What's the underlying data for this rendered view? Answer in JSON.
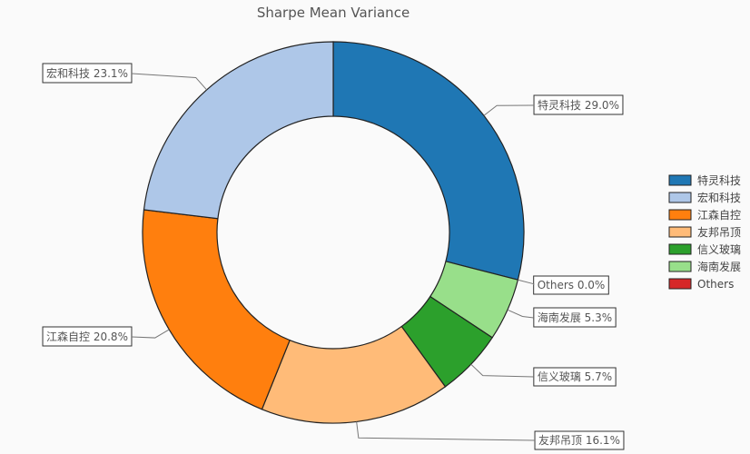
{
  "chart_data": {
    "type": "pie",
    "title": "Sharpe Mean Variance",
    "legend_position": "right",
    "slices": [
      {
        "name": "特灵科技",
        "value": 29.0,
        "label": "特灵科技 29.0%",
        "color": "#1f77b4"
      },
      {
        "name": "Others",
        "value": 0.0,
        "label": "Others 0.0%",
        "color": "#d62728"
      },
      {
        "name": "海南发展",
        "value": 5.3,
        "label": "海南发展 5.3%",
        "color": "#98df8a"
      },
      {
        "name": "信义玻璃",
        "value": 5.7,
        "label": "信义玻璃 5.7%",
        "color": "#2ca02c"
      },
      {
        "name": "友邦吊顶",
        "value": 16.1,
        "label": "友邦吊顶 16.1%",
        "color": "#ffbb78"
      },
      {
        "name": "江森自控",
        "value": 20.8,
        "label": "江森自控 20.8%",
        "color": "#ff7f0e"
      },
      {
        "name": "宏和科技",
        "value": 23.1,
        "label": "宏和科技 23.1%",
        "color": "#aec7e8"
      }
    ],
    "legend": [
      {
        "name": "特灵科技",
        "color": "#1f77b4"
      },
      {
        "name": "宏和科技",
        "color": "#aec7e8"
      },
      {
        "name": "江森自控",
        "color": "#ff7f0e"
      },
      {
        "name": "友邦吊顶",
        "color": "#ffbb78"
      },
      {
        "name": "信义玻璃",
        "color": "#2ca02c"
      },
      {
        "name": "海南发展",
        "color": "#98df8a"
      },
      {
        "name": "Others",
        "color": "#d62728"
      }
    ]
  }
}
